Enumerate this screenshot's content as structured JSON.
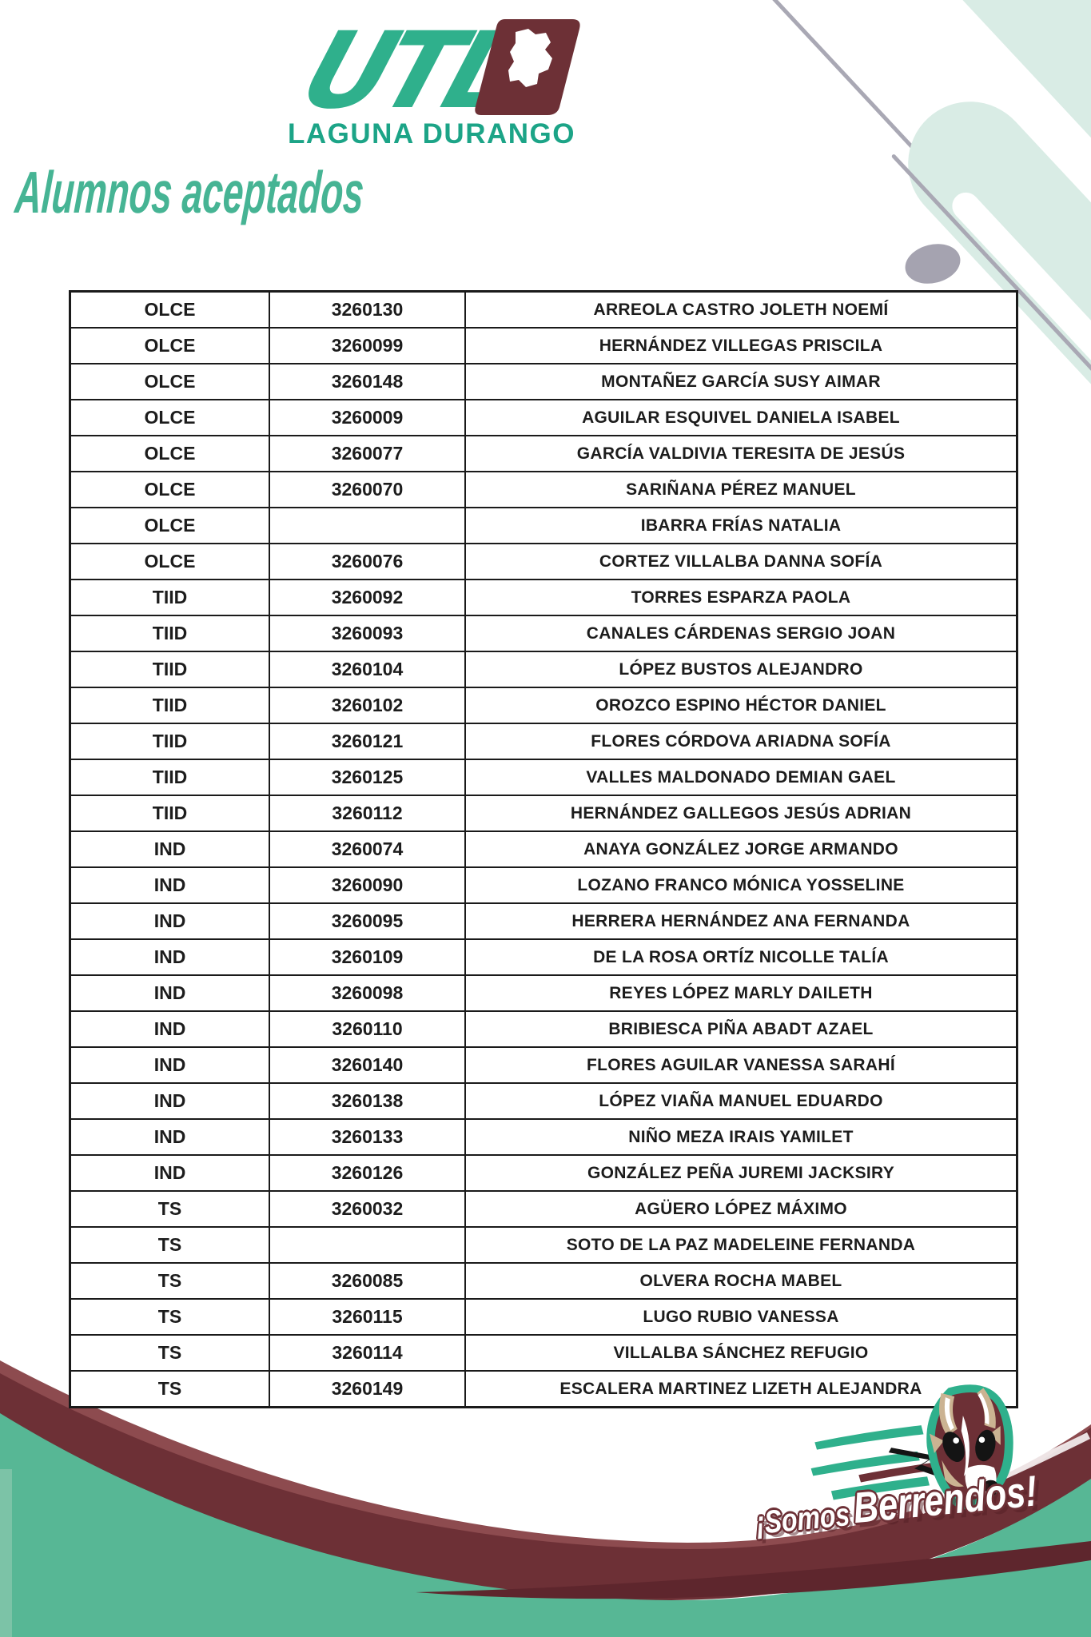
{
  "logo": {
    "acronym": "UTL",
    "campus": "LAGUNA DURANGO"
  },
  "page_title": "Alumnos aceptados",
  "slogan": {
    "prefix": "¡Somos",
    "emphasis": "Berrendos!"
  },
  "colors": {
    "teal": "#2FB08C",
    "light_teal": "#D9ECE5",
    "maroon": "#6D3036",
    "maroon_light": "#8D4B4F",
    "decor_gray": "#A5A3B0",
    "table_text": "#1C1C1C"
  },
  "table": {
    "rows": [
      {
        "program": "OLCE",
        "id": "3260130",
        "name": "ARREOLA CASTRO JOLETH NOEMÍ"
      },
      {
        "program": "OLCE",
        "id": "3260099",
        "name": "HERNÁNDEZ VILLEGAS PRISCILA"
      },
      {
        "program": "OLCE",
        "id": "3260148",
        "name": "MONTAÑEZ GARCÍA SUSY AIMAR"
      },
      {
        "program": "OLCE",
        "id": "3260009",
        "name": "AGUILAR ESQUIVEL DANIELA ISABEL"
      },
      {
        "program": "OLCE",
        "id": "3260077",
        "name": "GARCÍA VALDIVIA TERESITA DE JESÚS"
      },
      {
        "program": "OLCE",
        "id": "3260070",
        "name": "SARIÑANA PÉREZ MANUEL"
      },
      {
        "program": "OLCE",
        "id": "",
        "name": "IBARRA FRÍAS NATALIA"
      },
      {
        "program": "OLCE",
        "id": "3260076",
        "name": "CORTEZ VILLALBA DANNA SOFÍA"
      },
      {
        "program": "TIID",
        "id": "3260092",
        "name": "TORRES ESPARZA PAOLA"
      },
      {
        "program": "TIID",
        "id": "3260093",
        "name": "CANALES CÁRDENAS SERGIO JOAN"
      },
      {
        "program": "TIID",
        "id": "3260104",
        "name": "LÓPEZ BUSTOS ALEJANDRO"
      },
      {
        "program": "TIID",
        "id": "3260102",
        "name": "OROZCO ESPINO HÉCTOR DANIEL"
      },
      {
        "program": "TIID",
        "id": "3260121",
        "name": "FLORES CÓRDOVA ARIADNA SOFÍA"
      },
      {
        "program": "TIID",
        "id": "3260125",
        "name": "VALLES MALDONADO DEMIAN  GAEL"
      },
      {
        "program": "TIID",
        "id": "3260112",
        "name": "HERNÁNDEZ GALLEGOS JESÚS ADRIAN"
      },
      {
        "program": "IND",
        "id": "3260074",
        "name": "ANAYA GONZÁLEZ JORGE ARMANDO"
      },
      {
        "program": "IND",
        "id": "3260090",
        "name": "LOZANO FRANCO MÓNICA YOSSELINE"
      },
      {
        "program": "IND",
        "id": "3260095",
        "name": "HERRERA HERNÁNDEZ ANA FERNANDA"
      },
      {
        "program": "IND",
        "id": "3260109",
        "name": "DE LA ROSA ORTÍZ NICOLLE TALÍA"
      },
      {
        "program": "IND",
        "id": "3260098",
        "name": "REYES LÓPEZ MARLY DAILETH"
      },
      {
        "program": "IND",
        "id": "3260110",
        "name": "BRIBIESCA PIÑA ABADT AZAEL"
      },
      {
        "program": "IND",
        "id": "3260140",
        "name": "FLORES AGUILAR VANESSA SARAHÍ"
      },
      {
        "program": "IND",
        "id": "3260138",
        "name": "LÓPEZ VIAÑA MANUEL EDUARDO"
      },
      {
        "program": "IND",
        "id": "3260133",
        "name": "NIÑO MEZA IRAIS YAMILET"
      },
      {
        "program": "IND",
        "id": "3260126",
        "name": "GONZÁLEZ PEÑA JUREMI JACKSIRY"
      },
      {
        "program": "TS",
        "id": "3260032",
        "name": "AGÜERO LÓPEZ MÁXIMO"
      },
      {
        "program": "TS",
        "id": "",
        "name": "SOTO DE LA PAZ MADELEINE FERNANDA"
      },
      {
        "program": "TS",
        "id": "3260085",
        "name": "OLVERA ROCHA MABEL"
      },
      {
        "program": "TS",
        "id": "3260115",
        "name": "LUGO RUBIO VANESSA"
      },
      {
        "program": "TS",
        "id": "3260114",
        "name": "VILLALBA SÁNCHEZ REFUGIO"
      },
      {
        "program": "TS",
        "id": "3260149",
        "name": "ESCALERA MARTINEZ LIZETH ALEJANDRA"
      }
    ]
  }
}
